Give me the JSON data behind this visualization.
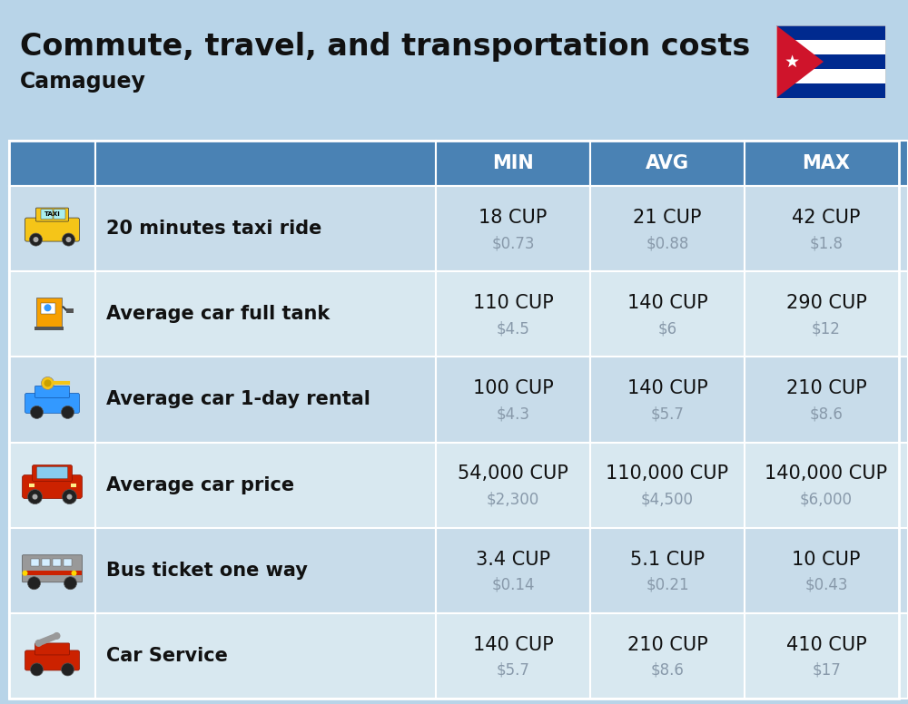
{
  "title": "Commute, travel, and transportation costs",
  "subtitle": "Camaguey",
  "background_color": "#b8d4e8",
  "header_color": "#4a82b4",
  "header_text_color": "#ffffff",
  "row_color_a": "#c8dcea",
  "row_color_b": "#d8e8f0",
  "cell_border_color": "#ffffff",
  "columns": [
    "MIN",
    "AVG",
    "MAX"
  ],
  "rows": [
    {
      "label": "20 minutes taxi ride",
      "min_cup": "18 CUP",
      "min_usd": "$0.73",
      "avg_cup": "21 CUP",
      "avg_usd": "$0.88",
      "max_cup": "42 CUP",
      "max_usd": "$1.8"
    },
    {
      "label": "Average car full tank",
      "min_cup": "110 CUP",
      "min_usd": "$4.5",
      "avg_cup": "140 CUP",
      "avg_usd": "$6",
      "max_cup": "290 CUP",
      "max_usd": "$12"
    },
    {
      "label": "Average car 1-day rental",
      "min_cup": "100 CUP",
      "min_usd": "$4.3",
      "avg_cup": "140 CUP",
      "avg_usd": "$5.7",
      "max_cup": "210 CUP",
      "max_usd": "$8.6"
    },
    {
      "label": "Average car price",
      "min_cup": "54,000 CUP",
      "min_usd": "$2,300",
      "avg_cup": "110,000 CUP",
      "avg_usd": "$4,500",
      "max_cup": "140,000 CUP",
      "max_usd": "$6,000"
    },
    {
      "label": "Bus ticket one way",
      "min_cup": "3.4 CUP",
      "min_usd": "$0.14",
      "avg_cup": "5.1 CUP",
      "avg_usd": "$0.21",
      "max_cup": "10 CUP",
      "max_usd": "$0.43"
    },
    {
      "label": "Car Service",
      "min_cup": "140 CUP",
      "min_usd": "$5.7",
      "avg_cup": "210 CUP",
      "avg_usd": "$8.6",
      "max_cup": "410 CUP",
      "max_usd": "$17"
    }
  ],
  "title_fontsize": 24,
  "subtitle_fontsize": 17,
  "header_fontsize": 15,
  "label_fontsize": 15,
  "value_fontsize": 15,
  "sub_value_fontsize": 12
}
